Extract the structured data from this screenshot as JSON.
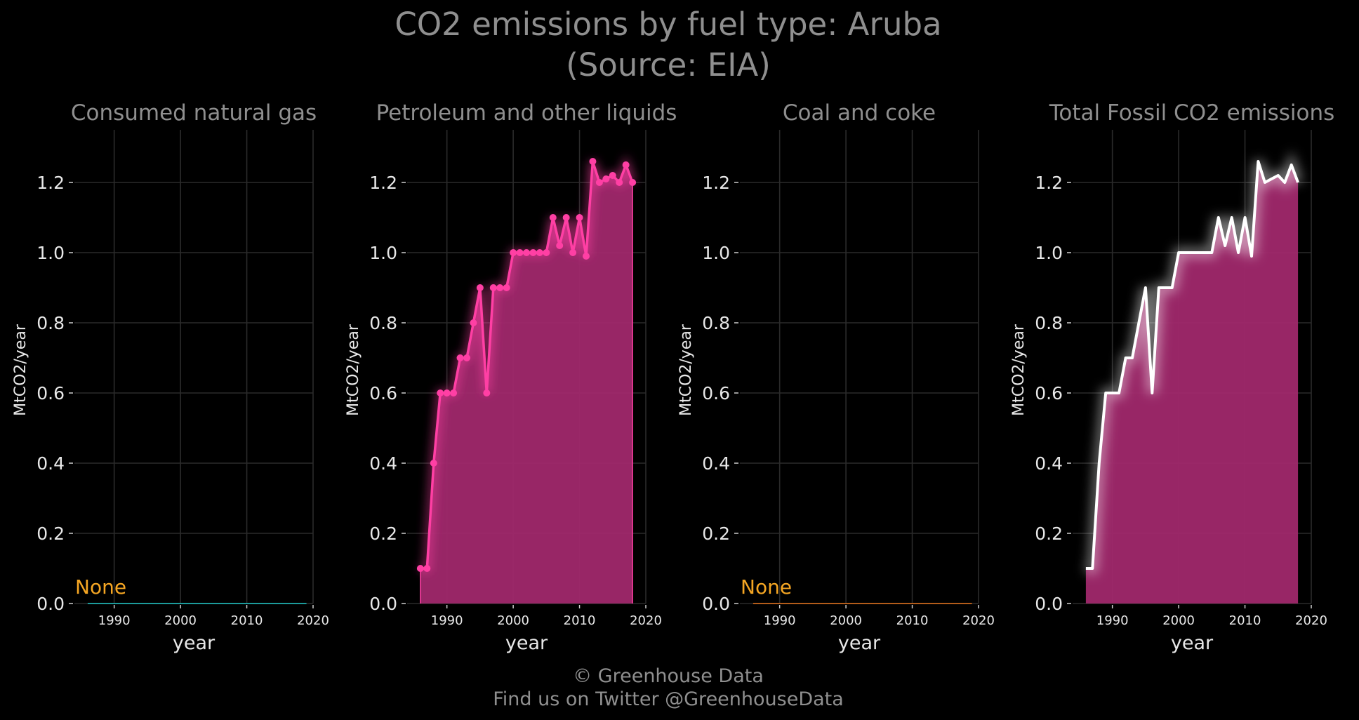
{
  "title": "CO2 emissions by fuel type: Aruba",
  "subtitle": "(Source: EIA)",
  "footer": {
    "line1": "© Greenhouse Data",
    "line2": "Find us on Twitter @GreenhouseData"
  },
  "colors": {
    "background": "#000000",
    "text": "#8f8f8f",
    "gas": "#1fc8c8",
    "petroleum": "#ff3fa4",
    "coal": "#e8741c",
    "total_line": "#ffffff",
    "fill": "#a0286c",
    "none_label": "#f5a623"
  },
  "chart_data": [
    {
      "type": "area",
      "title": "Consumed natural gas",
      "xlabel": "year",
      "ylabel": "MtCO2/year",
      "xticks": [
        1990,
        2000,
        2010,
        2020
      ],
      "yticks": [
        "0.0",
        "0.2",
        "0.4",
        "0.6",
        "0.8",
        "1.0",
        "1.2"
      ],
      "ylim": [
        0,
        1.35
      ],
      "xlim": [
        1984,
        2020
      ],
      "grid": true,
      "annotation": "None",
      "series": [
        {
          "x": [
            1986,
            2019
          ],
          "values": [
            0,
            0
          ]
        }
      ]
    },
    {
      "type": "area",
      "title": "Petroleum and other liquids",
      "xlabel": "year",
      "ylabel": "MtCO2/year",
      "xticks": [
        1990,
        2000,
        2010,
        2020
      ],
      "yticks": [
        "0.0",
        "0.2",
        "0.4",
        "0.6",
        "0.8",
        "1.0",
        "1.2"
      ],
      "ylim": [
        0,
        1.35
      ],
      "xlim": [
        1984,
        2020
      ],
      "grid": true,
      "markers": true,
      "series": [
        {
          "x": [
            1986,
            1987,
            1988,
            1989,
            1990,
            1991,
            1992,
            1993,
            1994,
            1995,
            1996,
            1997,
            1998,
            1999,
            2000,
            2001,
            2002,
            2003,
            2004,
            2005,
            2006,
            2007,
            2008,
            2009,
            2010,
            2011,
            2012,
            2013,
            2014,
            2015,
            2016,
            2017,
            2018
          ],
          "values": [
            0.1,
            0.1,
            0.4,
            0.6,
            0.6,
            0.6,
            0.7,
            0.7,
            0.8,
            0.9,
            0.6,
            0.9,
            0.9,
            0.9,
            1.0,
            1.0,
            1.0,
            1.0,
            1.0,
            1.0,
            1.1,
            1.02,
            1.1,
            1.0,
            1.1,
            0.99,
            1.26,
            1.2,
            1.21,
            1.22,
            1.2,
            1.25,
            1.2
          ]
        }
      ]
    },
    {
      "type": "area",
      "title": "Coal and coke",
      "xlabel": "year",
      "ylabel": "MtCO2/year",
      "xticks": [
        1990,
        2000,
        2010,
        2020
      ],
      "yticks": [
        "0.0",
        "0.2",
        "0.4",
        "0.6",
        "0.8",
        "1.0",
        "1.2"
      ],
      "ylim": [
        0,
        1.35
      ],
      "xlim": [
        1984,
        2020
      ],
      "grid": true,
      "annotation": "None",
      "series": [
        {
          "x": [
            1986,
            2019
          ],
          "values": [
            0,
            0
          ]
        }
      ]
    },
    {
      "type": "area",
      "title": "Total Fossil CO2 emissions",
      "xlabel": "year",
      "ylabel": "MtCO2/year",
      "xticks": [
        1990,
        2000,
        2010,
        2020
      ],
      "yticks": [
        "0.0",
        "0.2",
        "0.4",
        "0.6",
        "0.8",
        "1.0",
        "1.2"
      ],
      "ylim": [
        0,
        1.35
      ],
      "xlim": [
        1984,
        2020
      ],
      "grid": true,
      "series": [
        {
          "x": [
            1986,
            1987,
            1988,
            1989,
            1990,
            1991,
            1992,
            1993,
            1994,
            1995,
            1996,
            1997,
            1998,
            1999,
            2000,
            2001,
            2002,
            2003,
            2004,
            2005,
            2006,
            2007,
            2008,
            2009,
            2010,
            2011,
            2012,
            2013,
            2014,
            2015,
            2016,
            2017,
            2018
          ],
          "values": [
            0.1,
            0.1,
            0.4,
            0.6,
            0.6,
            0.6,
            0.7,
            0.7,
            0.8,
            0.9,
            0.6,
            0.9,
            0.9,
            0.9,
            1.0,
            1.0,
            1.0,
            1.0,
            1.0,
            1.0,
            1.1,
            1.02,
            1.1,
            1.0,
            1.1,
            0.99,
            1.26,
            1.2,
            1.21,
            1.22,
            1.2,
            1.25,
            1.2
          ]
        }
      ]
    }
  ]
}
